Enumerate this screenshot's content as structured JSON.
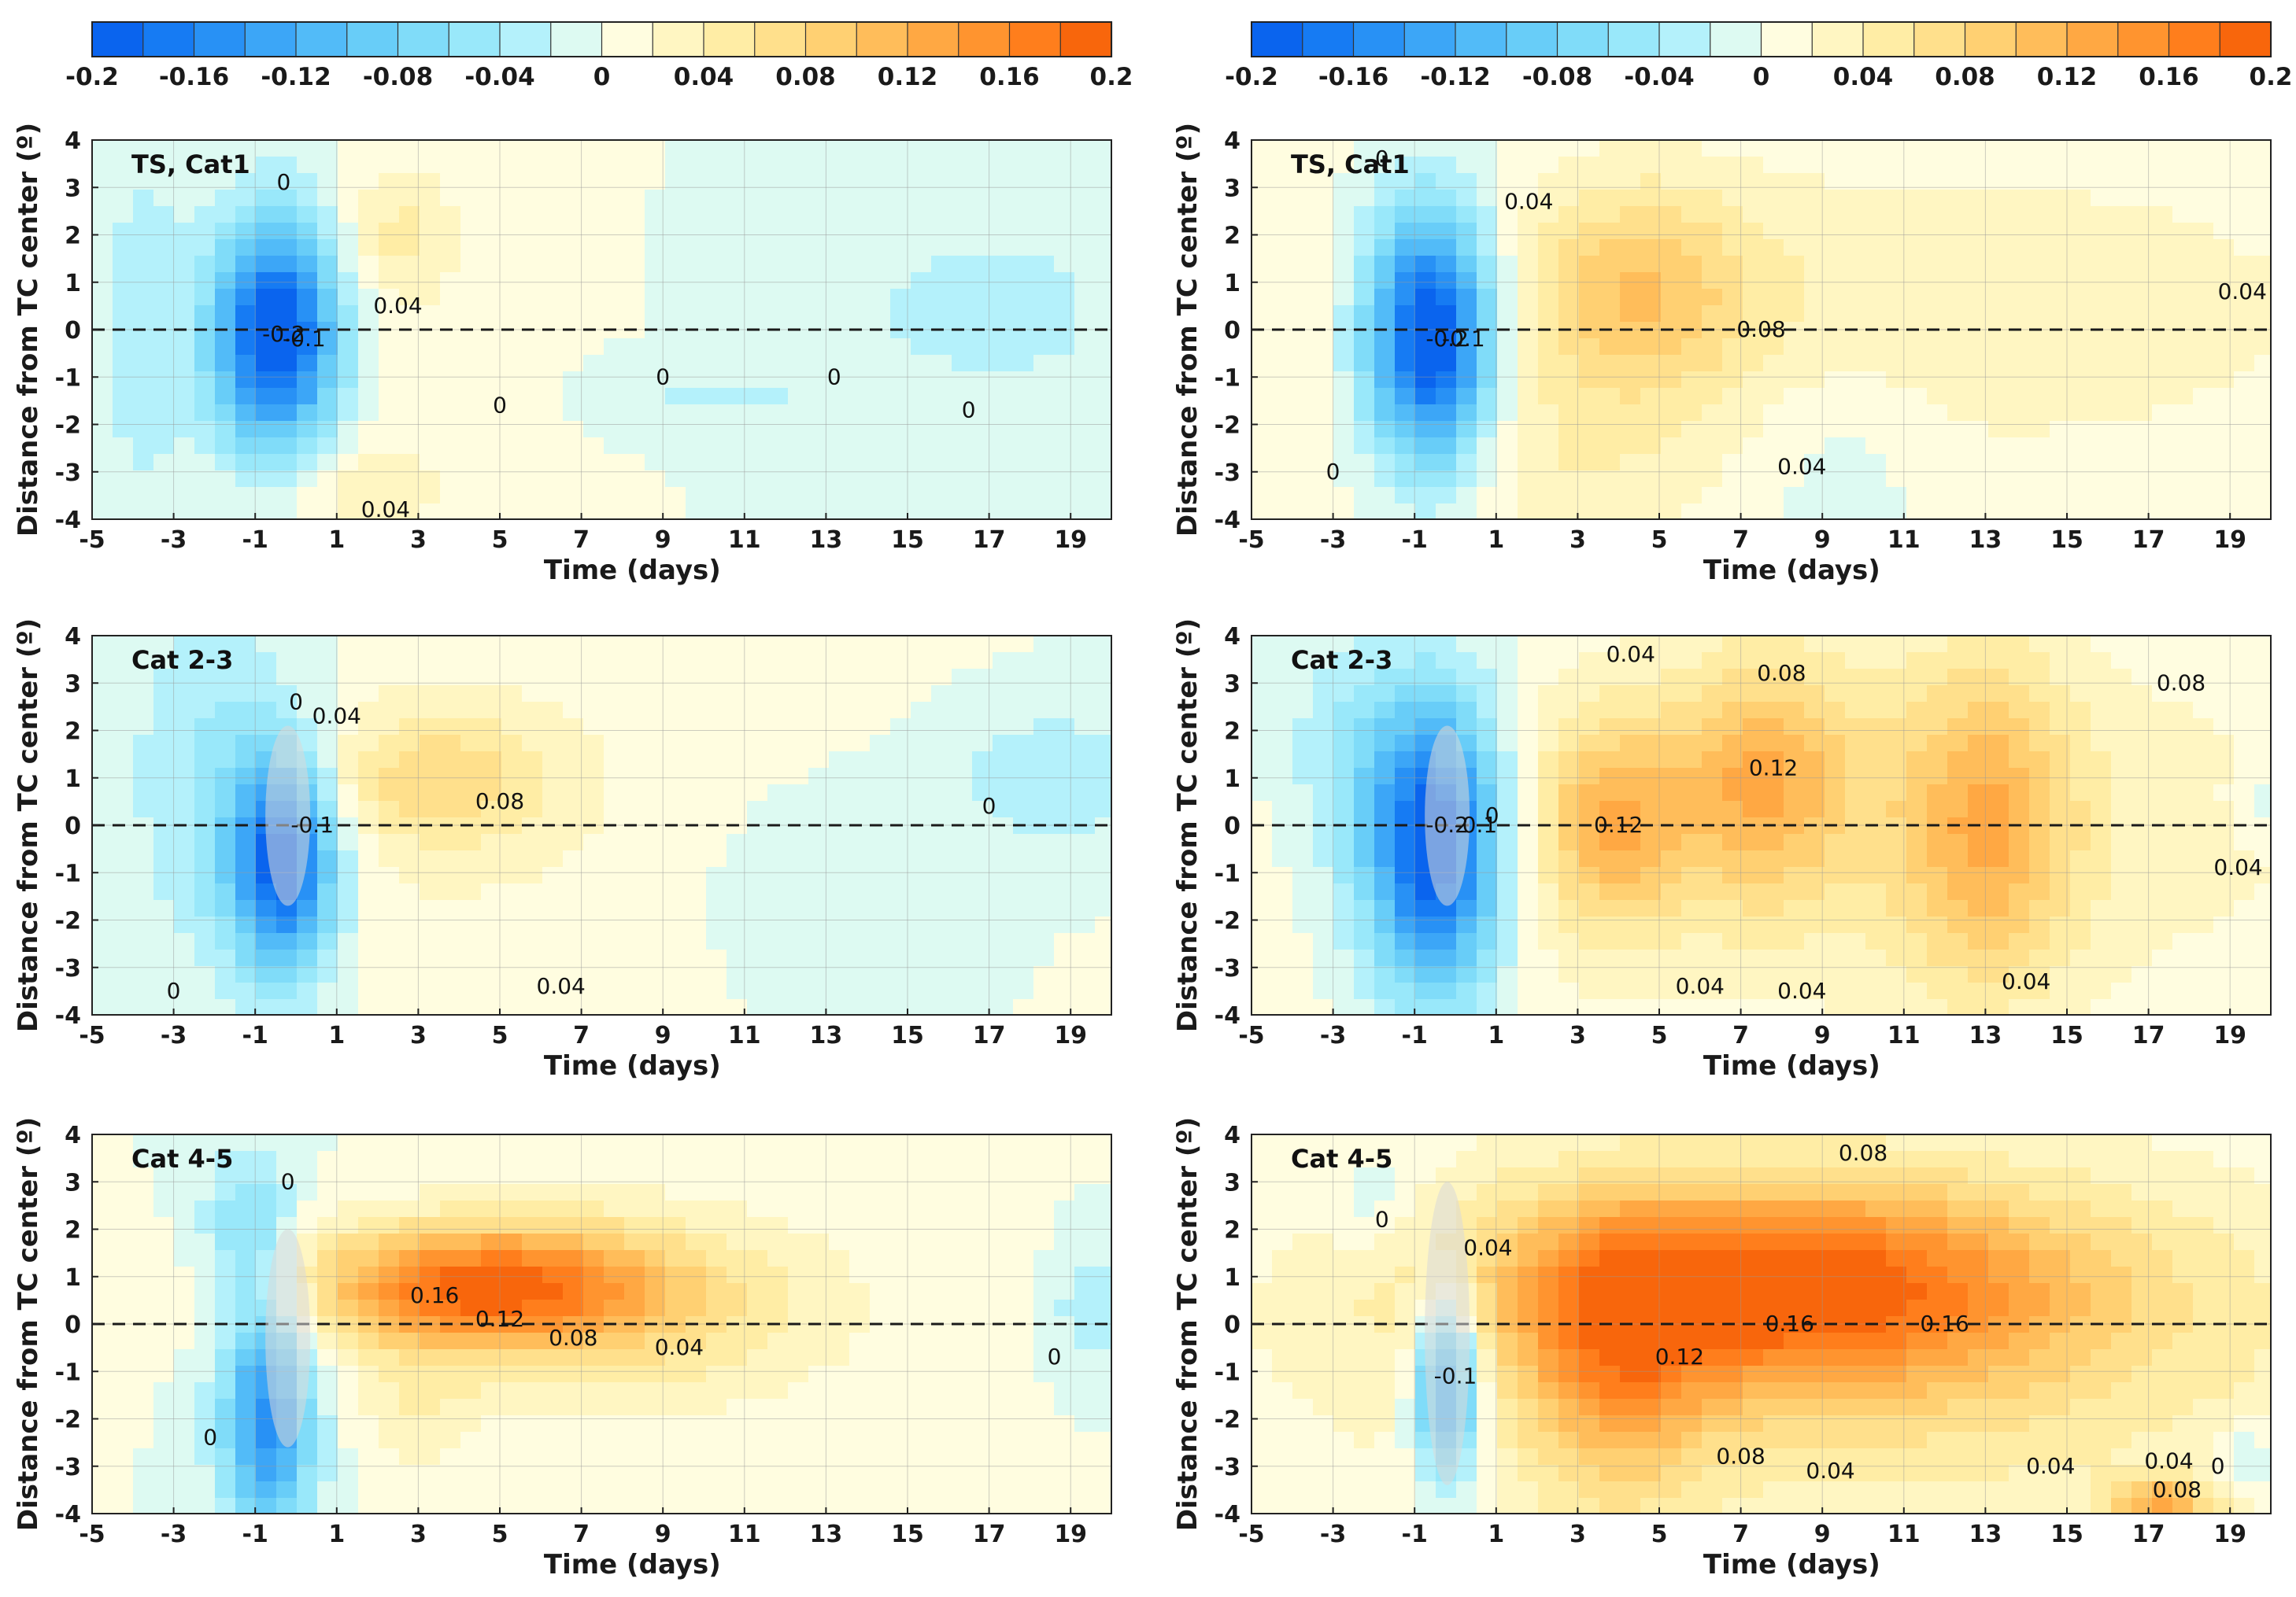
{
  "chart_data": {
    "type": "heatmap",
    "colorbar": {
      "levels": [
        -0.2,
        -0.18,
        -0.16,
        -0.14,
        -0.12,
        -0.1,
        -0.08,
        -0.06,
        -0.04,
        -0.02,
        0,
        0.02,
        0.04,
        0.06,
        0.08,
        0.1,
        0.12,
        0.14,
        0.16,
        0.18,
        0.2
      ],
      "tick_labels": [
        "-0.2",
        "-0.16",
        "-0.12",
        "-0.08",
        "-0.04",
        "0",
        "0.04",
        "0.08",
        "0.12",
        "0.16",
        "0.2"
      ],
      "colors": [
        "#0a64ee",
        "#167bf3",
        "#2891f5",
        "#3ca6f7",
        "#52bbf8",
        "#68cdf8",
        "#80dcf9",
        "#99e8fa",
        "#b4f1fb",
        "#ddfaf2",
        "#fffde0",
        "#fff6c2",
        "#ffeda5",
        "#ffe08c",
        "#ffd072",
        "#ffbd5a",
        "#ffa843",
        "#ff942f",
        "#ff7e1c",
        "#f8660c"
      ]
    },
    "x": {
      "label": "Time (days)",
      "range": [
        -5,
        20
      ],
      "ticks": [
        "-5",
        "-3",
        "-1",
        "1",
        "3",
        "5",
        "7",
        "9",
        "11",
        "13",
        "15",
        "17",
        "19"
      ]
    },
    "y": {
      "label": "Distance from TC center (º)",
      "range": [
        -4,
        4
      ],
      "ticks": [
        "-4",
        "-3",
        "-2",
        "-1",
        "0",
        "1",
        "2",
        "3",
        "4"
      ]
    },
    "panels": [
      {
        "title": "TS, Cat1",
        "column": "left",
        "anomalies": [
          {
            "t": -0.5,
            "y": -0.1,
            "st": 1.1,
            "sy": 1.7,
            "a": -0.21
          },
          {
            "t": -3.8,
            "y": 0,
            "st": 0.8,
            "sy": 3,
            "a": -0.03
          },
          {
            "t": 17,
            "y": 0.4,
            "st": 2.2,
            "sy": 1.2,
            "a": -0.035
          },
          {
            "t": 10.5,
            "y": -1.4,
            "st": 1.4,
            "sy": 0.35,
            "a": -0.03
          },
          {
            "t": 2.5,
            "y": 2,
            "st": 1,
            "sy": 1,
            "a": 0.04
          },
          {
            "t": 1.5,
            "y": -3.3,
            "st": 1.5,
            "sy": 0.7,
            "a": 0.035
          },
          {
            "t": 3,
            "y": 0,
            "st": 1.5,
            "sy": 3,
            "a": 0.01
          }
        ],
        "labels": [
          {
            "text": "0",
            "t": -0.3,
            "y": 3.1
          },
          {
            "text": "-0.1",
            "t": 0.2,
            "y": -0.2
          },
          {
            "text": "-0.2",
            "t": -0.3,
            "y": -0.1
          },
          {
            "text": "0.04",
            "t": 2.5,
            "y": 0.5
          },
          {
            "text": "0.04",
            "t": 2.2,
            "y": -3.8
          },
          {
            "text": "0",
            "t": 5,
            "y": -1.6
          },
          {
            "text": "0",
            "t": 9,
            "y": -1
          },
          {
            "text": "0",
            "t": 13.2,
            "y": -1
          },
          {
            "text": "0",
            "t": 16.5,
            "y": -1.7
          }
        ]
      },
      {
        "title": "TS, Cat1",
        "column": "right",
        "anomalies": [
          {
            "t": -0.6,
            "y": -0.2,
            "st": 1.1,
            "sy": 1.9,
            "a": -0.22
          },
          {
            "t": 4.5,
            "y": 0.8,
            "st": 2,
            "sy": 1.6,
            "a": 0.08
          },
          {
            "t": 12,
            "y": 0.4,
            "st": 8,
            "sy": 2.5,
            "a": 0.035
          },
          {
            "t": 2.5,
            "y": -3,
            "st": 2.5,
            "sy": 1.5,
            "a": 0.03
          },
          {
            "t": -4.2,
            "y": 0,
            "st": 0.9,
            "sy": 4,
            "a": 0.015
          },
          {
            "t": 9.5,
            "y": -2.5,
            "st": 1.5,
            "sy": 1.5,
            "a": -0.02
          }
        ],
        "labels": [
          {
            "text": "0",
            "t": -1.8,
            "y": 3.6
          },
          {
            "text": "0.04",
            "t": 1.8,
            "y": 2.7
          },
          {
            "text": "-0.1",
            "t": 0.2,
            "y": -0.2
          },
          {
            "text": "-0.2",
            "t": -0.2,
            "y": -0.2
          },
          {
            "text": "0.08",
            "t": 7.5,
            "y": 0
          },
          {
            "text": "0.04",
            "t": 8.5,
            "y": -2.9
          },
          {
            "text": "0",
            "t": -3,
            "y": -3
          },
          {
            "text": "0.04",
            "t": 19.3,
            "y": 0.8
          }
        ]
      },
      {
        "title": "Cat 2-3",
        "column": "left",
        "anomalies": [
          {
            "t": -0.3,
            "y": -0.8,
            "st": 0.9,
            "sy": 1.6,
            "a": -0.19
          },
          {
            "t": -2,
            "y": 0.8,
            "st": 1.6,
            "sy": 2.8,
            "a": -0.05
          },
          {
            "t": 18.5,
            "y": 1,
            "st": 1.6,
            "sy": 1,
            "a": -0.04
          },
          {
            "t": 3.5,
            "y": 1,
            "st": 2,
            "sy": 1,
            "a": 0.06
          },
          {
            "t": 5,
            "y": 0,
            "st": 6,
            "sy": 3,
            "a": 0.02
          },
          {
            "t": 12,
            "y": -1,
            "st": 3,
            "sy": 2,
            "a": -0.015
          }
        ],
        "labels": [
          {
            "text": "0",
            "t": 0,
            "y": 2.6
          },
          {
            "text": "0.04",
            "t": 1,
            "y": 2.3
          },
          {
            "text": "-0.1",
            "t": 0.4,
            "y": 0
          },
          {
            "text": "0.08",
            "t": 5,
            "y": 0.5
          },
          {
            "text": "0.04",
            "t": 6.5,
            "y": -3.4
          },
          {
            "text": "0",
            "t": -3,
            "y": -3.5
          },
          {
            "text": "0",
            "t": 17,
            "y": 0.4
          }
        ]
      },
      {
        "title": "Cat 2-3",
        "column": "right",
        "anomalies": [
          {
            "t": -0.5,
            "y": -0.4,
            "st": 1.2,
            "sy": 2.2,
            "a": -0.22
          },
          {
            "t": -2.8,
            "y": 1.5,
            "st": 1.2,
            "sy": 2,
            "a": -0.04
          },
          {
            "t": 7.5,
            "y": 1,
            "st": 1.6,
            "sy": 1.8,
            "a": 0.09
          },
          {
            "t": 3.8,
            "y": 0,
            "st": 1.2,
            "sy": 1.5,
            "a": 0.09
          },
          {
            "t": 13,
            "y": 0,
            "st": 1.5,
            "sy": 2.5,
            "a": 0.09
          },
          {
            "t": 10,
            "y": 0,
            "st": 9,
            "sy": 3,
            "a": 0.04
          },
          {
            "t": 19.8,
            "y": 0.5,
            "st": 0.5,
            "sy": 0.5,
            "a": -0.03
          }
        ],
        "labels": [
          {
            "text": "0.04",
            "t": 4.3,
            "y": 3.6
          },
          {
            "text": "0.08",
            "t": 8,
            "y": 3.2
          },
          {
            "text": "0.08",
            "t": 17.8,
            "y": 3
          },
          {
            "text": "0.12",
            "t": 4,
            "y": 0
          },
          {
            "text": "0.12",
            "t": 7.8,
            "y": 1.2
          },
          {
            "text": "-0.1",
            "t": 0.5,
            "y": 0
          },
          {
            "text": "-0.2",
            "t": -0.2,
            "y": 0
          },
          {
            "text": "0",
            "t": 0.9,
            "y": 0.2
          },
          {
            "text": "0.04",
            "t": 19.2,
            "y": -0.9
          },
          {
            "text": "0.04",
            "t": 6,
            "y": -3.4
          },
          {
            "text": "0.04",
            "t": 8.5,
            "y": -3.5
          },
          {
            "text": "0.04",
            "t": 14,
            "y": -3.3
          }
        ]
      },
      {
        "title": "Cat 4-5",
        "column": "left",
        "anomalies": [
          {
            "t": -0.7,
            "y": -2,
            "st": 0.8,
            "sy": 1.8,
            "a": -0.15
          },
          {
            "t": -1.2,
            "y": 2,
            "st": 0.8,
            "sy": 1.2,
            "a": -0.06
          },
          {
            "t": 4.5,
            "y": 0.8,
            "st": 3,
            "sy": 0.9,
            "a": 0.16
          },
          {
            "t": 8,
            "y": 0.3,
            "st": 4,
            "sy": 1.5,
            "a": 0.06
          },
          {
            "t": 19.5,
            "y": 0.3,
            "st": 0.6,
            "sy": 0.8,
            "a": -0.04
          },
          {
            "t": 3,
            "y": -1.8,
            "st": 1,
            "sy": 1,
            "a": 0.03
          }
        ],
        "labels": [
          {
            "text": "0",
            "t": -0.2,
            "y": 3
          },
          {
            "text": "0.16",
            "t": 3.4,
            "y": 0.6
          },
          {
            "text": "0.12",
            "t": 5,
            "y": 0.1
          },
          {
            "text": "0.08",
            "t": 6.8,
            "y": -0.3
          },
          {
            "text": "0.04",
            "t": 9.4,
            "y": -0.5
          },
          {
            "text": "0",
            "t": -2.1,
            "y": -2.4
          },
          {
            "text": "0",
            "t": 18.6,
            "y": -0.7
          }
        ]
      },
      {
        "title": "Cat 4-5",
        "column": "right",
        "anomalies": [
          {
            "t": -0.2,
            "y": -1.3,
            "st": 0.6,
            "sy": 1.4,
            "a": -0.16
          },
          {
            "t": -2,
            "y": 2.5,
            "st": 0.8,
            "sy": 0.8,
            "a": -0.03
          },
          {
            "t": 8,
            "y": 0.8,
            "st": 5,
            "sy": 1.5,
            "a": 0.16
          },
          {
            "t": 4,
            "y": -1,
            "st": 1.5,
            "sy": 2.2,
            "a": 0.08
          },
          {
            "t": 10,
            "y": -0.5,
            "st": 9,
            "sy": 3,
            "a": 0.06
          },
          {
            "t": 17.3,
            "y": -3.8,
            "st": 0.9,
            "sy": 0.4,
            "a": 0.1
          },
          {
            "t": 19.5,
            "y": -2.8,
            "st": 0.6,
            "sy": 0.5,
            "a": -0.04
          }
        ],
        "labels": [
          {
            "text": "0.08",
            "t": 10,
            "y": 3.6
          },
          {
            "text": "0",
            "t": -1.8,
            "y": 2.2
          },
          {
            "text": "0.04",
            "t": 0.8,
            "y": 1.6
          },
          {
            "text": "-0.1",
            "t": 0,
            "y": -1.1
          },
          {
            "text": "0.16",
            "t": 8.2,
            "y": 0
          },
          {
            "text": "0.16",
            "t": 12,
            "y": 0
          },
          {
            "text": "0.12",
            "t": 5.5,
            "y": -0.7
          },
          {
            "text": "0.08",
            "t": 7,
            "y": -2.8
          },
          {
            "text": "0.04",
            "t": 9.2,
            "y": -3.1
          },
          {
            "text": "0.04",
            "t": 14.6,
            "y": -3
          },
          {
            "text": "0.04",
            "t": 17.5,
            "y": -2.9
          },
          {
            "text": "0.08",
            "t": 17.7,
            "y": -3.5
          },
          {
            "text": "0",
            "t": 18.7,
            "y": -3
          }
        ]
      }
    ]
  }
}
